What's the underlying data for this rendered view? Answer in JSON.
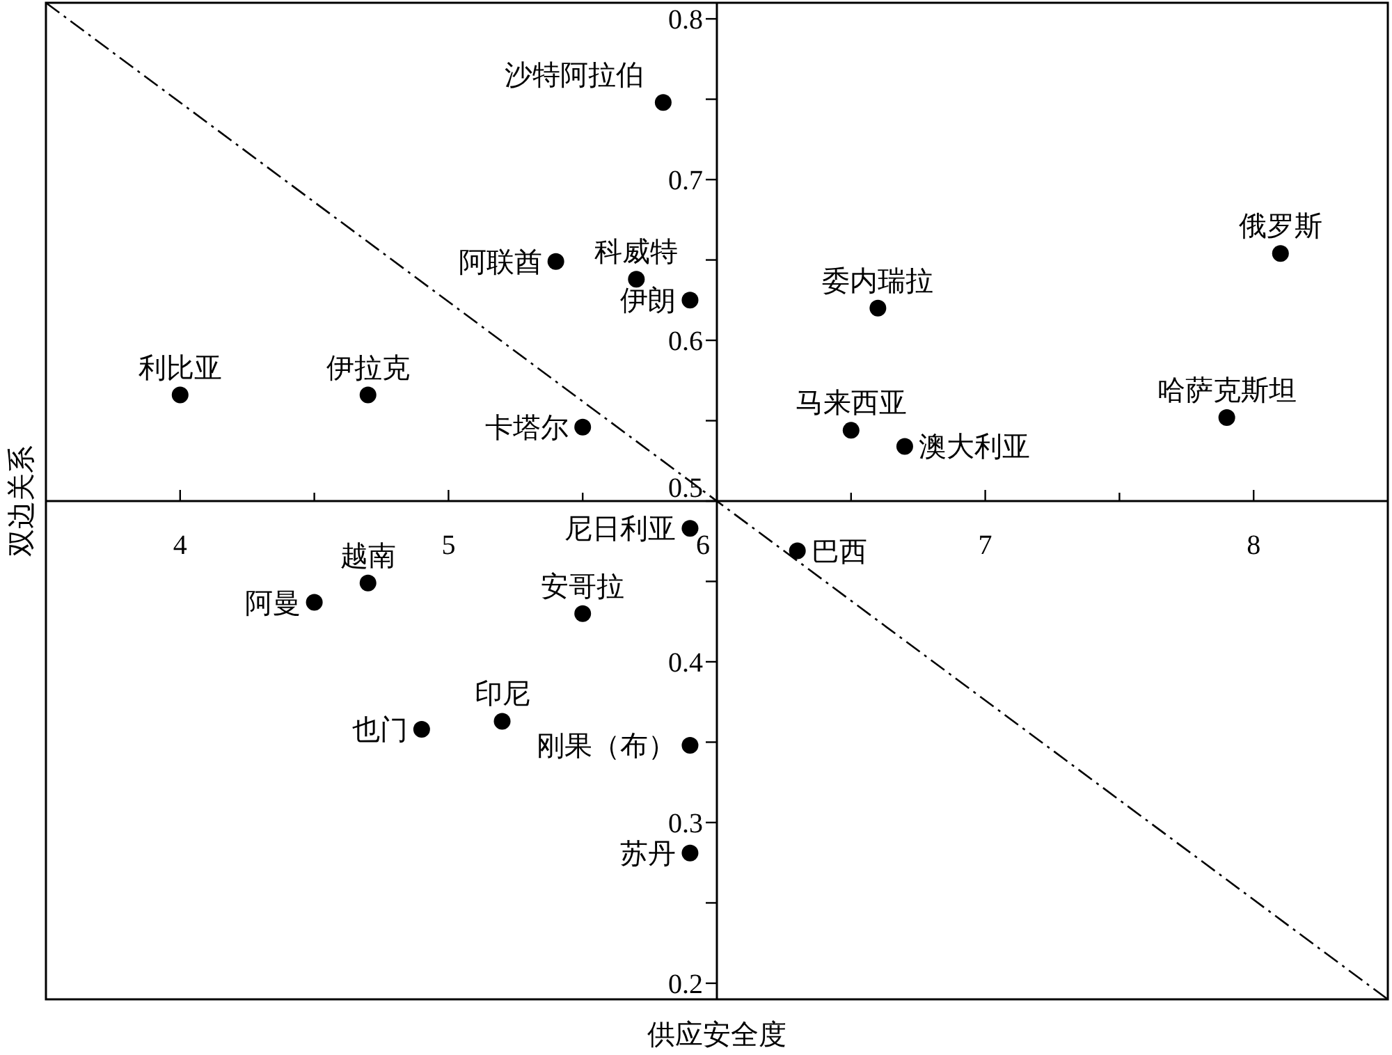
{
  "chart_data": {
    "type": "scatter",
    "xlabel": "供应安全度",
    "ylabel": "双边关系",
    "xlim": [
      3.5,
      8.5
    ],
    "ylim": [
      0.19,
      0.81
    ],
    "xticks": [
      4,
      5,
      6,
      7,
      8
    ],
    "yticks": [
      0.2,
      0.3,
      0.4,
      0.5,
      0.6,
      0.7,
      0.8
    ],
    "grid": false,
    "marker": "circle",
    "series": [
      {
        "color": "#000000",
        "x": [
          5.8,
          8.1,
          5.4,
          5.7,
          5.9,
          6.6,
          4.0,
          4.7,
          5.5,
          6.5,
          6.7,
          7.9,
          5.9,
          6.3,
          4.7,
          4.5,
          5.5,
          5.2,
          4.9,
          5.9,
          5.9
        ],
        "values": [
          0.748,
          0.654,
          0.649,
          0.638,
          0.625,
          0.62,
          0.566,
          0.566,
          0.546,
          0.544,
          0.534,
          0.552,
          0.483,
          0.469,
          0.449,
          0.437,
          0.43,
          0.363,
          0.358,
          0.348,
          0.281
        ]
      },
      {
        "type": "line",
        "color": "#000000",
        "line_style": "dashed",
        "marker": "none",
        "x": [
          3.5,
          8.5
        ],
        "values": [
          0.81,
          0.19
        ]
      }
    ],
    "annotations": [
      {
        "text": "沙特阿拉伯",
        "x": 5.8,
        "y": 0.748
      },
      {
        "text": "俄罗斯",
        "x": 8.1,
        "y": 0.654
      },
      {
        "text": "阿联酋",
        "x": 5.4,
        "y": 0.649
      },
      {
        "text": "科威特",
        "x": 5.7,
        "y": 0.638
      },
      {
        "text": "伊朗",
        "x": 5.9,
        "y": 0.625
      },
      {
        "text": "委内瑞拉",
        "x": 6.6,
        "y": 0.62
      },
      {
        "text": "利比亚",
        "x": 4.0,
        "y": 0.566
      },
      {
        "text": "伊拉克",
        "x": 4.7,
        "y": 0.566
      },
      {
        "text": "卡塔尔",
        "x": 5.5,
        "y": 0.546
      },
      {
        "text": "马来西亚",
        "x": 6.5,
        "y": 0.544
      },
      {
        "text": "澳大利亚",
        "x": 6.7,
        "y": 0.534
      },
      {
        "text": "哈萨克斯坦",
        "x": 7.9,
        "y": 0.552
      },
      {
        "text": "尼日利亚",
        "x": 5.9,
        "y": 0.483
      },
      {
        "text": "巴西",
        "x": 6.3,
        "y": 0.469
      },
      {
        "text": "越南",
        "x": 4.7,
        "y": 0.449
      },
      {
        "text": "阿曼",
        "x": 4.5,
        "y": 0.437
      },
      {
        "text": "安哥拉",
        "x": 5.5,
        "y": 0.43
      },
      {
        "text": "印尼",
        "x": 5.2,
        "y": 0.363
      },
      {
        "text": "也门",
        "x": 4.9,
        "y": 0.358
      },
      {
        "text": "刚果（布）",
        "x": 5.9,
        "y": 0.348
      },
      {
        "text": "苏丹",
        "x": 5.9,
        "y": 0.281
      }
    ]
  }
}
